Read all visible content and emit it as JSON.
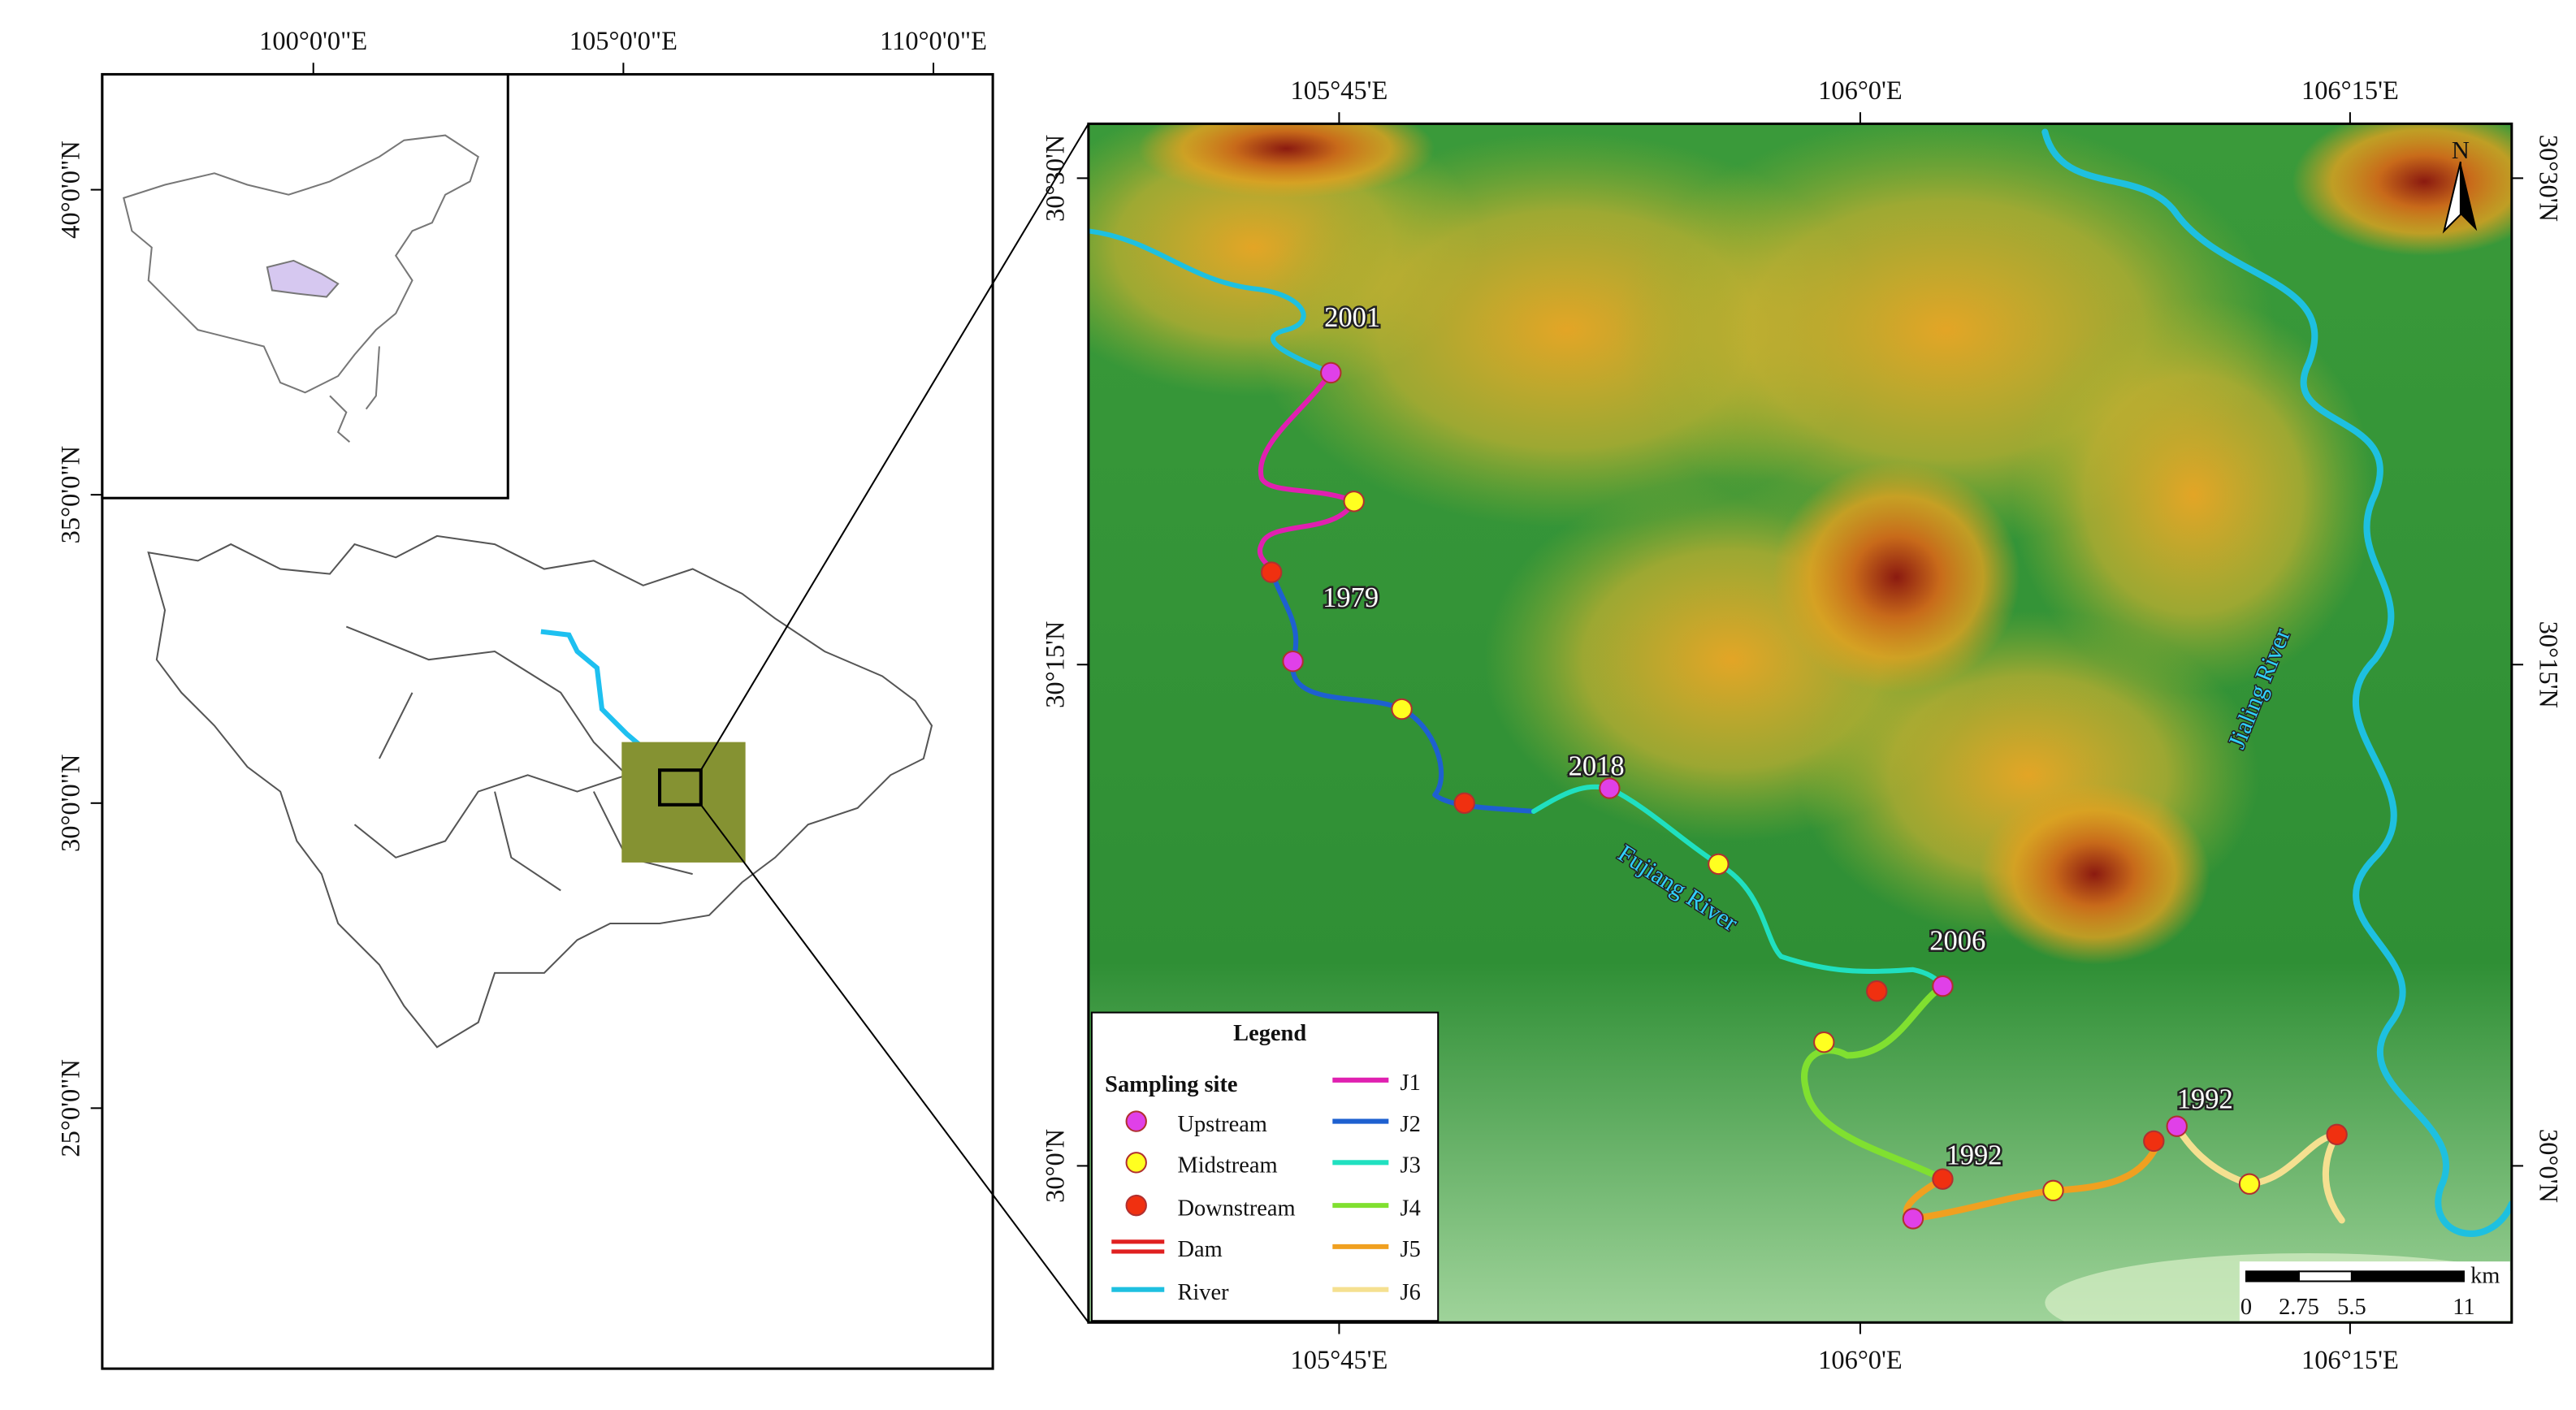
{
  "inset_map": {
    "lon_labels": [
      "100°0'0\"E",
      "105°0'0\"E",
      "110°0'0\"E"
    ],
    "lat_labels": [
      "40°0'0\"N",
      "35°0'0\"N",
      "30°0'0\"N",
      "25°0'0\"N"
    ]
  },
  "main_map": {
    "lon_labels": [
      "105°45'E",
      "106°0'E",
      "106°15'E"
    ],
    "lat_labels": [
      "30°30'N",
      "30°15'N",
      "30°0'N"
    ],
    "rivers": [
      "Fujiang River",
      "Jialing River"
    ],
    "site_years": [
      "2001",
      "1979",
      "2018",
      "2006",
      "1992",
      "1992"
    ],
    "north": "N",
    "scale_bar": {
      "unit": "km",
      "labels": [
        "0",
        "2.75",
        "5.5",
        "11"
      ]
    }
  },
  "legend": {
    "title": "Legend",
    "group": "Sampling site",
    "items": [
      "Upstream",
      "Midstream",
      "Downstream",
      "Dam",
      "River",
      "J1",
      "J2",
      "J3",
      "J4",
      "J5",
      "J6"
    ]
  }
}
